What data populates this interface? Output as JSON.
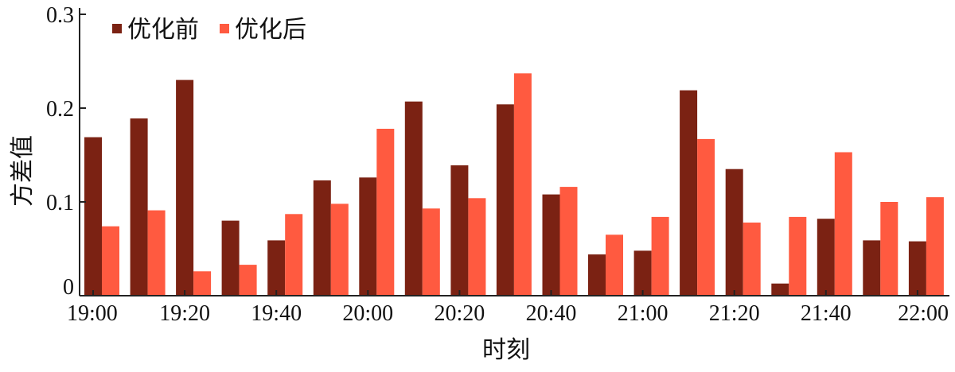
{
  "colors": {
    "before": "#7b2213",
    "after": "#ff5a40",
    "axis": "#222222"
  },
  "chart_data": {
    "type": "bar",
    "x": [
      "19:00",
      "19:10",
      "19:20",
      "19:30",
      "19:40",
      "19:50",
      "20:00",
      "20:10",
      "20:20",
      "20:30",
      "20:40",
      "20:50",
      "21:00",
      "21:10",
      "21:20",
      "21:30",
      "21:40",
      "21:50",
      "22:00"
    ],
    "x_tick_labels": [
      "19:00",
      "19:20",
      "19:40",
      "20:00",
      "20:20",
      "20:40",
      "21:00",
      "21:20",
      "21:40",
      "22:00"
    ],
    "series": [
      {
        "name": "优化前",
        "values": [
          0.169,
          0.189,
          0.23,
          0.08,
          0.059,
          0.123,
          0.126,
          0.207,
          0.139,
          0.204,
          0.108,
          0.044,
          0.048,
          0.219,
          0.135,
          0.013,
          0.082,
          0.059,
          0.058
        ]
      },
      {
        "name": "优化后",
        "values": [
          0.074,
          0.091,
          0.026,
          0.033,
          0.087,
          0.098,
          0.178,
          0.093,
          0.104,
          0.237,
          0.116,
          0.065,
          0.084,
          0.167,
          0.078,
          0.084,
          0.153,
          0.1,
          0.105
        ]
      }
    ],
    "y_ticks": [
      "0",
      "0.1",
      "0.2",
      "0.3"
    ],
    "ylim": [
      0,
      0.3
    ],
    "xlabel": "时刻",
    "ylabel": "方差值",
    "legend": "top-left",
    "grid": false
  }
}
